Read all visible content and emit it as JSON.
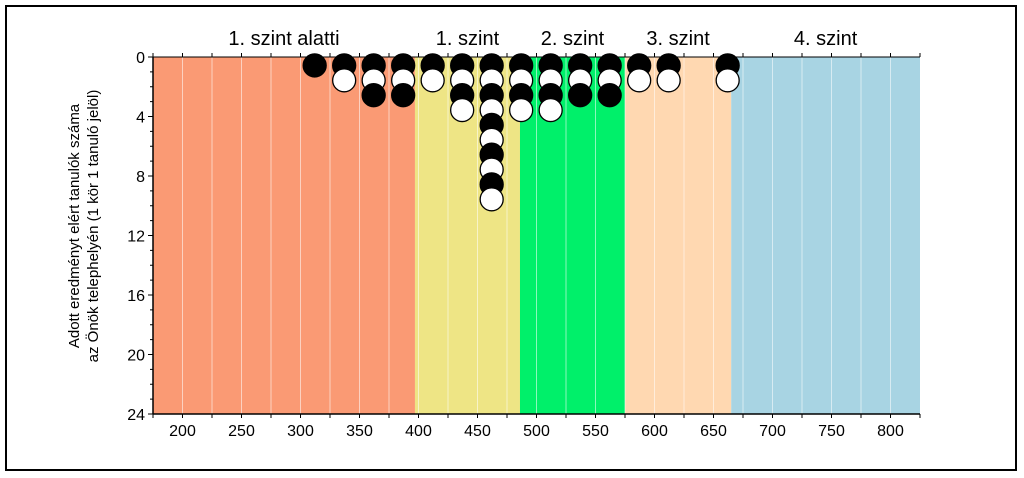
{
  "chart_data": {
    "type": "scatter",
    "title": "",
    "xlabel": "",
    "ylabel_lines": [
      "Adott eredményt elért tanulók száma",
      "az Önök telephelyén (1 kör 1 tanuló jelöl)"
    ],
    "xlim": [
      175,
      825
    ],
    "ylim": [
      0,
      24
    ],
    "y_inverted": true,
    "x_ticks": [
      200,
      250,
      300,
      350,
      400,
      450,
      500,
      550,
      600,
      650,
      700,
      750,
      800
    ],
    "y_ticks": [
      0,
      4,
      8,
      12,
      16,
      20,
      24
    ],
    "x_minor_step": 25,
    "bands": [
      {
        "label": "1. szint alatti",
        "from": 175,
        "to": 397,
        "color": "#FA9A74"
      },
      {
        "label": "1. szint",
        "from": 397,
        "to": 486,
        "color": "#EEE585"
      },
      {
        "label": "2. szint",
        "from": 486,
        "to": 575,
        "color": "#00F06A"
      },
      {
        "label": "3. szint",
        "from": 575,
        "to": 665,
        "color": "#FFD8B1"
      },
      {
        "label": "4. szint",
        "from": 665,
        "to": 825,
        "color": "#A8D4E3"
      }
    ],
    "columns": [
      {
        "x": 312,
        "dots": [
          "black"
        ]
      },
      {
        "x": 337,
        "dots": [
          "black",
          "white"
        ]
      },
      {
        "x": 362,
        "dots": [
          "black",
          "white",
          "black"
        ]
      },
      {
        "x": 387,
        "dots": [
          "black",
          "white",
          "black"
        ]
      },
      {
        "x": 412,
        "dots": [
          "black",
          "white"
        ]
      },
      {
        "x": 437,
        "dots": [
          "black",
          "white",
          "black",
          "white"
        ]
      },
      {
        "x": 462,
        "dots": [
          "black",
          "white",
          "black",
          "white",
          "black",
          "white",
          "black",
          "white",
          "black",
          "white"
        ]
      },
      {
        "x": 487,
        "dots": [
          "black",
          "white",
          "black",
          "white"
        ]
      },
      {
        "x": 512,
        "dots": [
          "black",
          "white",
          "black",
          "white"
        ]
      },
      {
        "x": 537,
        "dots": [
          "black",
          "white",
          "black"
        ]
      },
      {
        "x": 562,
        "dots": [
          "black",
          "white",
          "black"
        ]
      },
      {
        "x": 587,
        "dots": [
          "black",
          "white"
        ]
      },
      {
        "x": 612,
        "dots": [
          "black",
          "white"
        ]
      },
      {
        "x": 662,
        "dots": [
          "black",
          "white"
        ]
      }
    ],
    "grid": true,
    "colors": {
      "frame": "#000000",
      "grid": "#ffffff",
      "dot_black": "#000000",
      "dot_white": "#ffffff"
    }
  }
}
